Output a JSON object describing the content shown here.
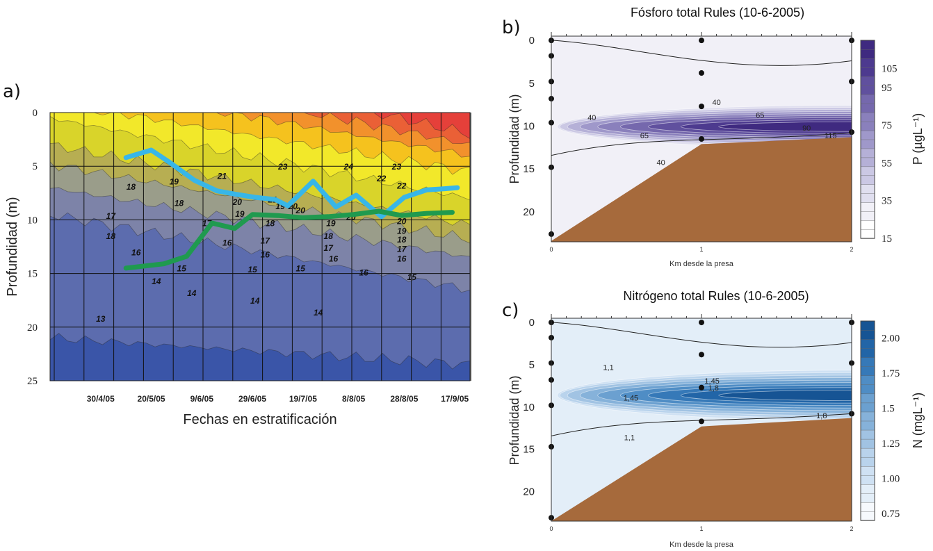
{
  "chart_data": [
    {
      "panel_label": "a)",
      "type": "heatmap",
      "title": "",
      "xlabel": "Fechas en estratificación",
      "ylabel": "Profundidad (m)",
      "x_tick_labels": [
        "30/4/05",
        "20/5/05",
        "9/6/05",
        "29/6/05",
        "19/7/05",
        "8/8/05",
        "28/8/05",
        "17/9/05"
      ],
      "x_range": [
        "2005-04-10",
        "2005-09-23"
      ],
      "x_ticks": [
        "2005-04-30",
        "2005-05-20",
        "2005-06-09",
        "2005-06-29",
        "2005-07-19",
        "2005-08-08",
        "2005-08-28",
        "2005-09-17"
      ],
      "y_tick_labels": [
        "0",
        "5",
        "10",
        "15",
        "20",
        "25"
      ],
      "ylim": [
        25,
        0
      ],
      "grid": true,
      "color_scale": [
        "#3a55a8",
        "#5c6cae",
        "#7d83a8",
        "#9a9d8a",
        "#b7ae52",
        "#d9d42a",
        "#f2e82a",
        "#f5c21e",
        "#f2912c",
        "#ea6036",
        "#e5403a"
      ],
      "contour_labels": [
        {
          "text": "18",
          "date": "2005-05-12",
          "depth": 7.2
        },
        {
          "text": "19",
          "date": "2005-05-29",
          "depth": 6.7
        },
        {
          "text": "21",
          "date": "2005-06-17",
          "depth": 6.2
        },
        {
          "text": "23",
          "date": "2005-07-11",
          "depth": 5.3
        },
        {
          "text": "24",
          "date": "2005-08-06",
          "depth": 5.3
        },
        {
          "text": "22",
          "date": "2005-08-19",
          "depth": 6.4
        },
        {
          "text": "22",
          "date": "2005-08-27",
          "depth": 7.1
        },
        {
          "text": "23",
          "date": "2005-08-25",
          "depth": 5.3
        },
        {
          "text": "18",
          "date": "2005-05-31",
          "depth": 8.7
        },
        {
          "text": "17",
          "date": "2005-05-04",
          "depth": 9.9
        },
        {
          "text": "20",
          "date": "2005-06-23",
          "depth": 8.6
        },
        {
          "text": "19",
          "date": "2005-06-24",
          "depth": 9.7
        },
        {
          "text": "17",
          "date": "2005-06-11",
          "depth": 10.6
        },
        {
          "text": "18",
          "date": "2005-07-06",
          "depth": 10.6
        },
        {
          "text": "20",
          "date": "2005-07-15",
          "depth": 9.0
        },
        {
          "text": "19",
          "date": "2005-07-10",
          "depth": 9.0
        },
        {
          "text": "21",
          "date": "2005-07-07",
          "depth": 8.4
        },
        {
          "text": "20",
          "date": "2005-07-18",
          "depth": 9.4
        },
        {
          "text": "19",
          "date": "2005-07-30",
          "depth": 10.6
        },
        {
          "text": "18",
          "date": "2005-07-29",
          "depth": 11.8
        },
        {
          "text": "20",
          "date": "2005-08-07",
          "depth": 10.0
        },
        {
          "text": "20",
          "date": "2005-08-27",
          "depth": 10.4
        },
        {
          "text": "19",
          "date": "2005-08-27",
          "depth": 11.3
        },
        {
          "text": "18",
          "date": "2005-08-27",
          "depth": 12.1
        },
        {
          "text": "17",
          "date": "2005-08-27",
          "depth": 13.0
        },
        {
          "text": "16",
          "date": "2005-08-27",
          "depth": 13.9
        },
        {
          "text": "18",
          "date": "2005-05-04",
          "depth": 11.8
        },
        {
          "text": "16",
          "date": "2005-06-19",
          "depth": 12.4
        },
        {
          "text": "17",
          "date": "2005-07-04",
          "depth": 12.2
        },
        {
          "text": "16",
          "date": "2005-07-04",
          "depth": 13.5
        },
        {
          "text": "17",
          "date": "2005-07-29",
          "depth": 12.9
        },
        {
          "text": "16",
          "date": "2005-07-31",
          "depth": 13.9
        },
        {
          "text": "16",
          "date": "2005-05-14",
          "depth": 13.3
        },
        {
          "text": "15",
          "date": "2005-06-01",
          "depth": 14.8
        },
        {
          "text": "15",
          "date": "2005-06-29",
          "depth": 14.9
        },
        {
          "text": "15",
          "date": "2005-07-18",
          "depth": 14.8
        },
        {
          "text": "16",
          "date": "2005-08-12",
          "depth": 15.2
        },
        {
          "text": "15",
          "date": "2005-08-31",
          "depth": 15.6
        },
        {
          "text": "14",
          "date": "2005-05-22",
          "depth": 16.0
        },
        {
          "text": "14",
          "date": "2005-06-05",
          "depth": 17.1
        },
        {
          "text": "14",
          "date": "2005-06-30",
          "depth": 17.8
        },
        {
          "text": "14",
          "date": "2005-07-25",
          "depth": 18.9
        },
        {
          "text": "13",
          "date": "2005-04-30",
          "depth": 19.5
        }
      ],
      "series": [
        {
          "color": "#38b6e8",
          "x": [
            "2005-05-10",
            "2005-05-20",
            "2005-05-27",
            "2005-06-06",
            "2005-06-15",
            "2005-06-22",
            "2005-06-30",
            "2005-07-08",
            "2005-07-13",
            "2005-07-23",
            "2005-08-01",
            "2005-08-09",
            "2005-08-19",
            "2005-08-28",
            "2005-09-06",
            "2005-09-13",
            "2005-09-18"
          ],
          "y": [
            4.2,
            3.5,
            4.6,
            6.3,
            7.3,
            7.6,
            7.9,
            8.1,
            8.7,
            6.4,
            8.8,
            7.7,
            9.7,
            7.9,
            7.2,
            7.1,
            7.0
          ]
        },
        {
          "color": "#1f9a4f",
          "x": [
            "2005-05-10",
            "2005-05-25",
            "2005-06-03",
            "2005-06-13",
            "2005-06-22",
            "2005-06-29",
            "2005-07-09",
            "2005-07-19",
            "2005-07-29",
            "2005-08-08",
            "2005-08-18",
            "2005-08-27",
            "2005-09-06",
            "2005-09-16"
          ],
          "y": [
            14.5,
            14.1,
            13.4,
            10.3,
            10.8,
            9.5,
            9.6,
            9.8,
            9.7,
            9.5,
            9.2,
            9.6,
            9.4,
            9.3
          ]
        }
      ]
    },
    {
      "panel_label": "b)",
      "type": "heatmap",
      "title": "Fósforo total Rules (10-6-2005)",
      "xlabel": "Km desde la presa",
      "ylabel": "Profundidad (m)",
      "x_tick_labels": [
        "0",
        "1",
        "2"
      ],
      "xlim": [
        0,
        2
      ],
      "y_tick_labels": [
        "0",
        "5",
        "10",
        "15",
        "20"
      ],
      "ylim": [
        23.5,
        -0.5
      ],
      "grid": false,
      "colorbar": {
        "label": "P (µgL⁻¹)",
        "tick_labels": [
          "105",
          "95",
          "75",
          "55",
          "35",
          "15"
        ],
        "ticks": [
          105,
          95,
          75,
          55,
          35,
          15
        ],
        "range": [
          15,
          120
        ],
        "colors": [
          "#ffffff",
          "#f1f0f7",
          "#e0dfef",
          "#cbc8e4",
          "#b5b0d7",
          "#9f98ca",
          "#8a80bc",
          "#7568ad",
          "#60509e",
          "#4d3a8f",
          "#3f2a80"
        ]
      },
      "contour_labels": [
        {
          "text": "40",
          "x": 1.1,
          "y": 7.2
        },
        {
          "text": "40",
          "x": 0.27,
          "y": 9.0
        },
        {
          "text": "65",
          "x": 1.39,
          "y": 8.7
        },
        {
          "text": "90",
          "x": 1.7,
          "y": 10.2
        },
        {
          "text": "65",
          "x": 0.62,
          "y": 11.1
        },
        {
          "text": "115",
          "x": 1.86,
          "y": 11.1
        },
        {
          "text": "40",
          "x": 0.73,
          "y": 14.2
        }
      ],
      "sample_points": [
        {
          "x": 0,
          "y": 0
        },
        {
          "x": 0,
          "y": 1.8
        },
        {
          "x": 0,
          "y": 4.8
        },
        {
          "x": 0,
          "y": 6.8
        },
        {
          "x": 0,
          "y": 9.6
        },
        {
          "x": 0,
          "y": 14.8
        },
        {
          "x": 0,
          "y": 22.6
        },
        {
          "x": 1,
          "y": 0
        },
        {
          "x": 1,
          "y": 3.8
        },
        {
          "x": 1,
          "y": 7.7
        },
        {
          "x": 1,
          "y": 11.5
        },
        {
          "x": 2,
          "y": 0
        },
        {
          "x": 2,
          "y": 4.8
        },
        {
          "x": 2,
          "y": 10.7
        }
      ],
      "bottom_profile": [
        {
          "x": 0,
          "y": 23.4
        },
        {
          "x": 1,
          "y": 12.1
        },
        {
          "x": 2,
          "y": 11.3
        }
      ]
    },
    {
      "panel_label": "c)",
      "type": "heatmap",
      "title": "Nitrógeno total Rules (10-6-2005)",
      "xlabel": "Km desde la presa",
      "ylabel": "Profundidad (m)",
      "x_tick_labels": [
        "0",
        "1",
        "2"
      ],
      "xlim": [
        0,
        2
      ],
      "y_tick_labels": [
        "0",
        "5",
        "10",
        "15",
        "20"
      ],
      "ylim": [
        23.5,
        -0.5
      ],
      "grid": false,
      "colorbar": {
        "label": "N (mgL⁻¹)",
        "tick_labels": [
          "2.00",
          "1.75",
          "1.5",
          "1.25",
          "1.00",
          "0.75"
        ],
        "ticks": [
          2.0,
          1.75,
          1.5,
          1.25,
          1.0,
          0.75
        ],
        "range": [
          0.7,
          2.12
        ],
        "colors": [
          "#f6f9fd",
          "#e3eef8",
          "#cfe1f3",
          "#b9d3ec",
          "#a1c3e3",
          "#86b2da",
          "#6ba0d0",
          "#4f8dc5",
          "#3679b8",
          "#2265a7",
          "#165494"
        ]
      },
      "contour_labels": [
        {
          "text": "1,1",
          "x": 0.38,
          "y": 5.3
        },
        {
          "text": "1,45",
          "x": 1.07,
          "y": 6.9
        },
        {
          "text": "1,8",
          "x": 1.08,
          "y": 7.7
        },
        {
          "text": "1,45",
          "x": 0.53,
          "y": 8.9
        },
        {
          "text": "1,8",
          "x": 1.8,
          "y": 11.0
        },
        {
          "text": "1,1",
          "x": 0.52,
          "y": 13.6
        }
      ],
      "sample_points": [
        {
          "x": 0,
          "y": 0
        },
        {
          "x": 0,
          "y": 1.8
        },
        {
          "x": 0,
          "y": 4.8
        },
        {
          "x": 0,
          "y": 6.8
        },
        {
          "x": 0,
          "y": 9.8
        },
        {
          "x": 0,
          "y": 14.7
        },
        {
          "x": 0,
          "y": 23.1
        },
        {
          "x": 1,
          "y": 0
        },
        {
          "x": 1,
          "y": 3.8
        },
        {
          "x": 1,
          "y": 7.7
        },
        {
          "x": 1,
          "y": 11.7
        },
        {
          "x": 2,
          "y": 0
        },
        {
          "x": 2,
          "y": 4.8
        },
        {
          "x": 2,
          "y": 10.8
        }
      ],
      "bottom_profile": [
        {
          "x": 0,
          "y": 23.5
        },
        {
          "x": 1,
          "y": 12.3
        },
        {
          "x": 2,
          "y": 11.3
        }
      ]
    }
  ]
}
